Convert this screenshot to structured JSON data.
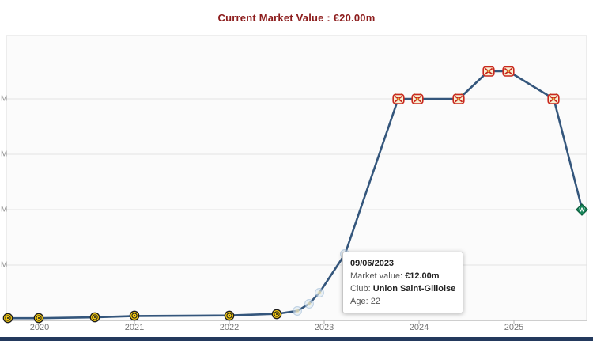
{
  "header": {
    "title": "Current Market Value : €20.00m"
  },
  "tooltip": {
    "date": "09/06/2023",
    "market_value_label": "Market value:",
    "market_value": "€12.00m",
    "club_label": "Club:",
    "club": "Union Saint-Gilloise",
    "age_label": "Age:",
    "age": "22"
  },
  "chart_data": {
    "type": "line",
    "title": "Current Market Value : €20.00m",
    "series": [
      {
        "name": "Market value (€m)",
        "color": "#34567c",
        "points": [
          {
            "x": 2019.67,
            "value_m": 0.4,
            "marker": "yellow-crest"
          },
          {
            "x": 2019.99,
            "value_m": 0.4,
            "marker": "yellow-crest"
          },
          {
            "x": 2020.58,
            "value_m": 0.55,
            "marker": "yellow-crest"
          },
          {
            "x": 2021.0,
            "value_m": 0.8,
            "marker": "yellow-crest"
          },
          {
            "x": 2022.0,
            "value_m": 0.9,
            "marker": "yellow-crest"
          },
          {
            "x": 2022.5,
            "value_m": 1.2,
            "marker": "yellow-crest"
          },
          {
            "x": 2022.72,
            "value_m": 1.75,
            "marker": "faded-crest"
          },
          {
            "x": 2022.84,
            "value_m": 3.0,
            "marker": "faded-crest"
          },
          {
            "x": 2022.95,
            "value_m": 5.0,
            "marker": "faded-crest"
          },
          {
            "x": 2023.22,
            "value_m": 12.0,
            "marker": "faded-crest",
            "date": "09/06/2023",
            "club": "Union Saint-Gilloise"
          },
          {
            "x": 2023.78,
            "value_m": 40.0,
            "marker": "red-crest"
          },
          {
            "x": 2023.98,
            "value_m": 40.0,
            "marker": "red-crest"
          },
          {
            "x": 2024.42,
            "value_m": 40.0,
            "marker": "red-crest"
          },
          {
            "x": 2024.73,
            "value_m": 45.0,
            "marker": "red-crest"
          },
          {
            "x": 2024.94,
            "value_m": 45.0,
            "marker": "red-crest"
          },
          {
            "x": 2025.42,
            "value_m": 40.0,
            "marker": "red-crest"
          },
          {
            "x": 2025.72,
            "value_m": 20.0,
            "marker": "green-diamond-crest"
          }
        ]
      }
    ],
    "x_axis": {
      "tick_labels": [
        "2020",
        "2021",
        "2022",
        "2023",
        "2024",
        "2025"
      ],
      "tick_values": [
        2020,
        2021,
        2022,
        2023,
        2024,
        2025
      ]
    },
    "y_axis": {
      "visible_tick_labels": [
        "M",
        "M",
        "M",
        "M"
      ],
      "inferred_tick_values_m": [
        40,
        30,
        20,
        10
      ],
      "ylim_m": [
        0,
        51.4
      ],
      "unit": "€m"
    },
    "grid": "horizontal",
    "legend": "none"
  },
  "colors": {
    "line": "#34567c",
    "title": "#8c1c1c",
    "grid": "#e3e3e3",
    "plot_border": "#dcdcdc",
    "axis": "#b0b0b0",
    "tick_text": "#777777",
    "plot_bg": "#fbfbfb",
    "bottom_bar": "#23395d"
  }
}
